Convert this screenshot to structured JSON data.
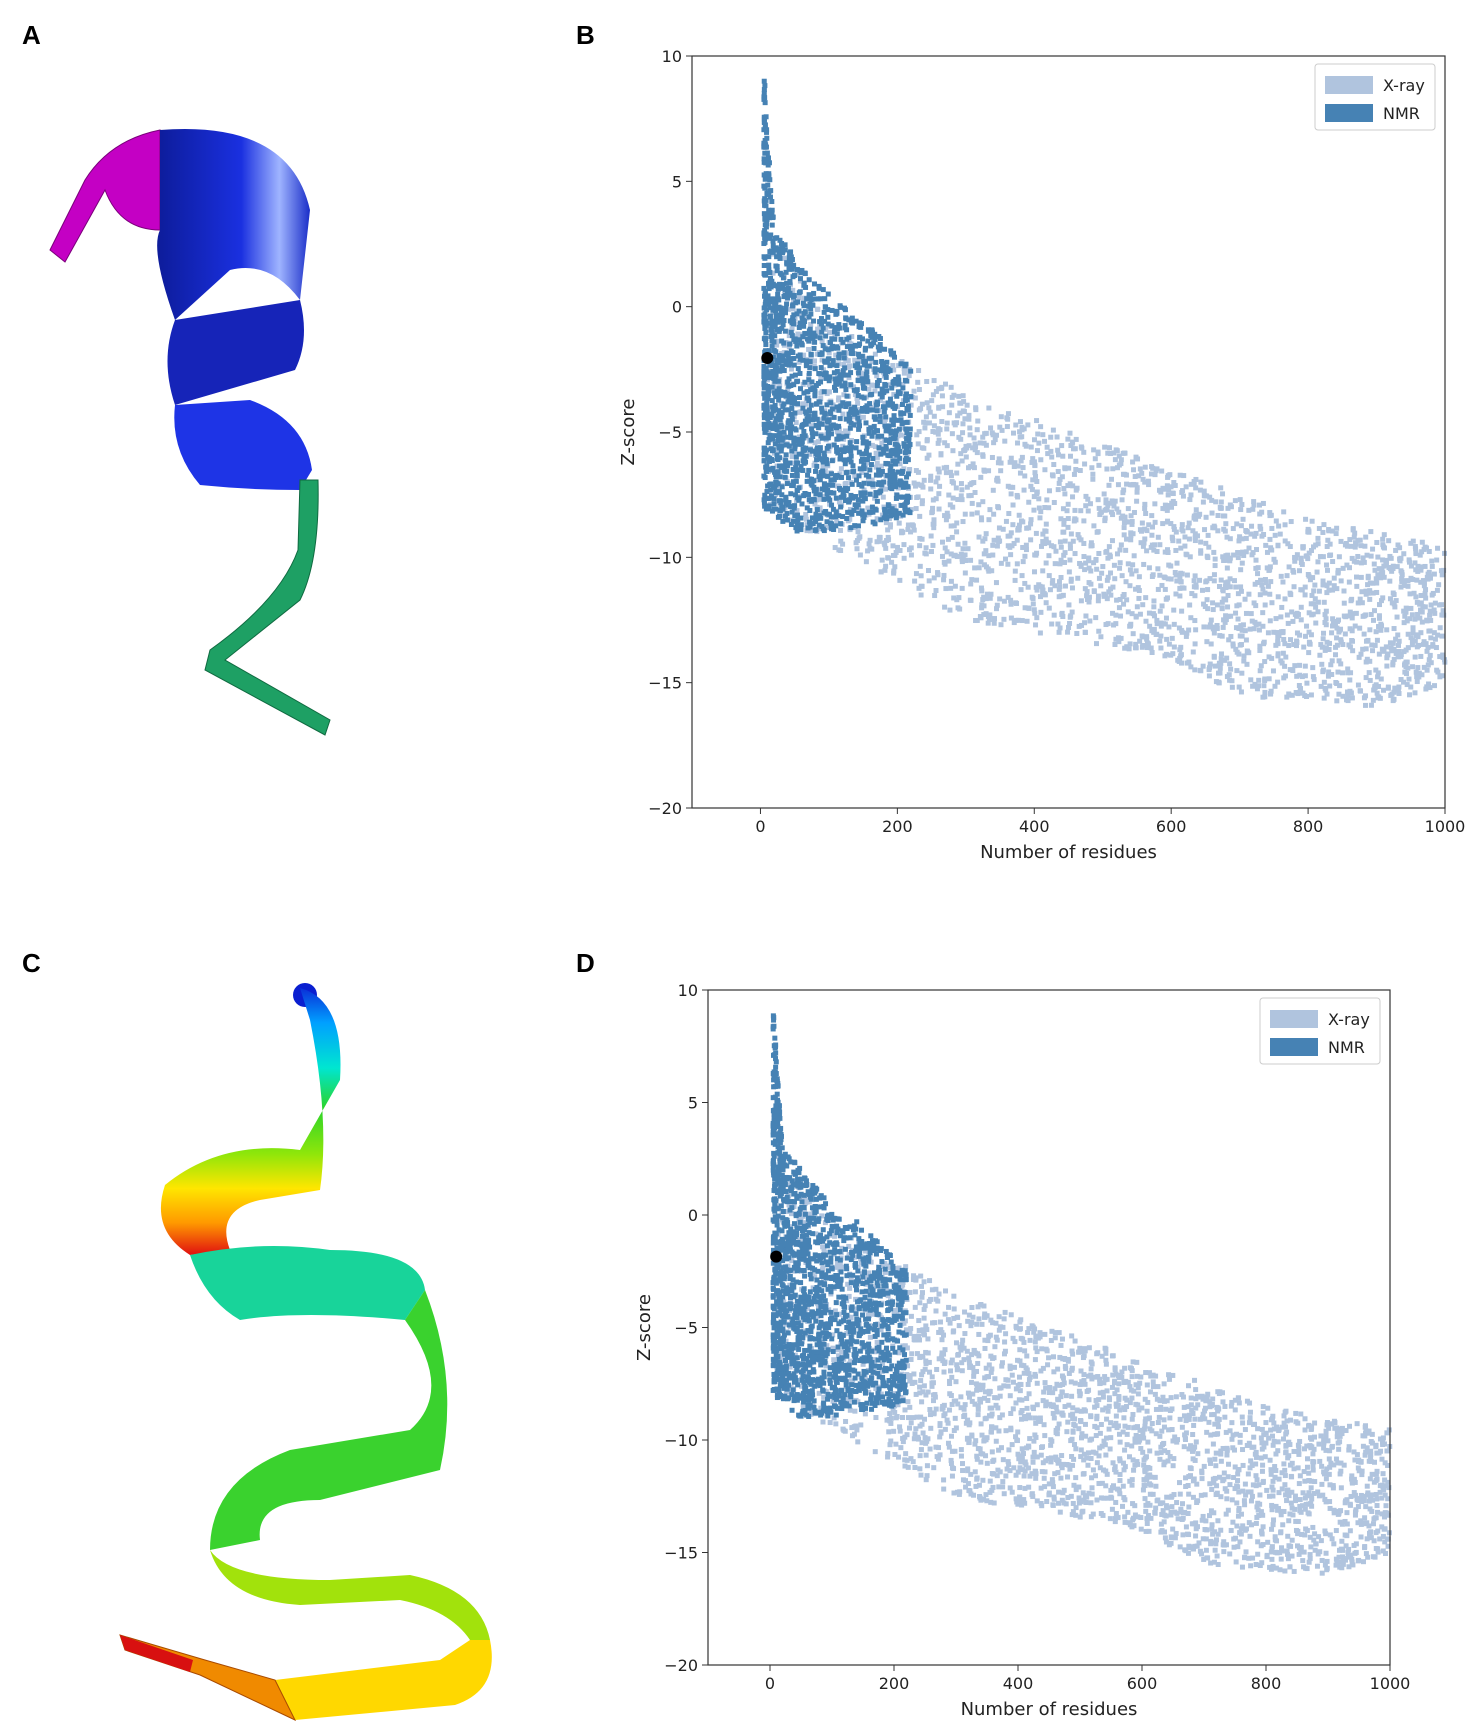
{
  "panels": {
    "a": {
      "label": "A"
    },
    "b": {
      "label": "B"
    },
    "c": {
      "label": "C"
    },
    "d": {
      "label": "D"
    }
  },
  "colors": {
    "xray": "#b0c4de",
    "nmr": "#4682b4",
    "marker": "#000000",
    "helix_a": [
      "#cc00cc",
      "#1a2ee0",
      "#1a2ee0",
      "#1fa86a"
    ],
    "helix_c": [
      "#0a2fd8",
      "#00a0ff",
      "#00e6d0",
      "#2ad42a",
      "#8ee60a",
      "#ffe600",
      "#ff9900",
      "#e01010"
    ]
  },
  "chart_data": [
    {
      "type": "scatter",
      "panel": "B",
      "title": "",
      "xlabel": "Number of residues",
      "ylabel": "Z-score",
      "xlim": [
        -100,
        1000
      ],
      "ylim": [
        -20,
        10
      ],
      "xticks": [
        "0",
        "200",
        "400",
        "600",
        "800",
        "1000"
      ],
      "yticks": [
        "10",
        "5",
        "0",
        "−5",
        "−10",
        "−15",
        "−20"
      ],
      "legend": {
        "placement": "top-right",
        "entries": [
          "X-ray",
          "NMR"
        ]
      },
      "series": [
        {
          "name": "X-ray",
          "shape": "point cloud",
          "upper_envelope": [
            [
              10,
              3
            ],
            [
              50,
              1.5
            ],
            [
              100,
              -0.5
            ],
            [
              200,
              -2
            ],
            [
              300,
              -3.5
            ],
            [
              400,
              -4.5
            ],
            [
              600,
              -6.5
            ],
            [
              800,
              -8.5
            ],
            [
              1000,
              -9.5
            ]
          ],
          "lower_envelope": [
            [
              10,
              -8
            ],
            [
              100,
              -9.5
            ],
            [
              200,
              -11
            ],
            [
              300,
              -12.5
            ],
            [
              400,
              -13
            ],
            [
              600,
              -14
            ],
            [
              700,
              -15.5
            ],
            [
              900,
              -16
            ],
            [
              1000,
              -15
            ]
          ]
        },
        {
          "name": "NMR",
          "shape": "point cloud",
          "upper_envelope": [
            [
              5,
              9.5
            ],
            [
              20,
              3
            ],
            [
              50,
              2
            ],
            [
              100,
              0.5
            ],
            [
              150,
              -0.5
            ],
            [
              220,
              -2.5
            ]
          ],
          "lower_envelope": [
            [
              5,
              -8
            ],
            [
              50,
              -9
            ],
            [
              100,
              -9
            ],
            [
              200,
              -8.5
            ],
            [
              230,
              -8.5
            ]
          ]
        }
      ],
      "highlight_point": {
        "x": 10,
        "y": -2.05
      }
    },
    {
      "type": "scatter",
      "panel": "D",
      "title": "",
      "xlabel": "Number of residues",
      "ylabel": "Z-score",
      "xlim": [
        -100,
        1000
      ],
      "ylim": [
        -20,
        10
      ],
      "xticks": [
        "0",
        "200",
        "400",
        "600",
        "800",
        "1000"
      ],
      "yticks": [
        "10",
        "5",
        "0",
        "−5",
        "−10",
        "−15",
        "−20"
      ],
      "legend": {
        "placement": "top-right",
        "entries": [
          "X-ray",
          "NMR"
        ]
      },
      "series": [
        {
          "name": "X-ray",
          "shape": "point cloud",
          "upper_envelope": [
            [
              10,
              3
            ],
            [
              50,
              1.5
            ],
            [
              100,
              -0.5
            ],
            [
              200,
              -2
            ],
            [
              300,
              -3.5
            ],
            [
              400,
              -4.5
            ],
            [
              600,
              -6.5
            ],
            [
              800,
              -8.5
            ],
            [
              1000,
              -9.5
            ]
          ],
          "lower_envelope": [
            [
              10,
              -8
            ],
            [
              100,
              -9.5
            ],
            [
              200,
              -11
            ],
            [
              300,
              -12.5
            ],
            [
              400,
              -13
            ],
            [
              600,
              -14
            ],
            [
              700,
              -15.5
            ],
            [
              900,
              -16
            ],
            [
              1000,
              -15
            ]
          ]
        },
        {
          "name": "NMR",
          "shape": "point cloud",
          "upper_envelope": [
            [
              5,
              9.5
            ],
            [
              20,
              3
            ],
            [
              50,
              2
            ],
            [
              100,
              0.5
            ],
            [
              150,
              -0.5
            ],
            [
              220,
              -2.5
            ]
          ],
          "lower_envelope": [
            [
              5,
              -8
            ],
            [
              50,
              -9
            ],
            [
              100,
              -9
            ],
            [
              200,
              -8.5
            ],
            [
              230,
              -8.5
            ]
          ]
        }
      ],
      "highlight_point": {
        "x": 10,
        "y": -1.85
      }
    }
  ]
}
